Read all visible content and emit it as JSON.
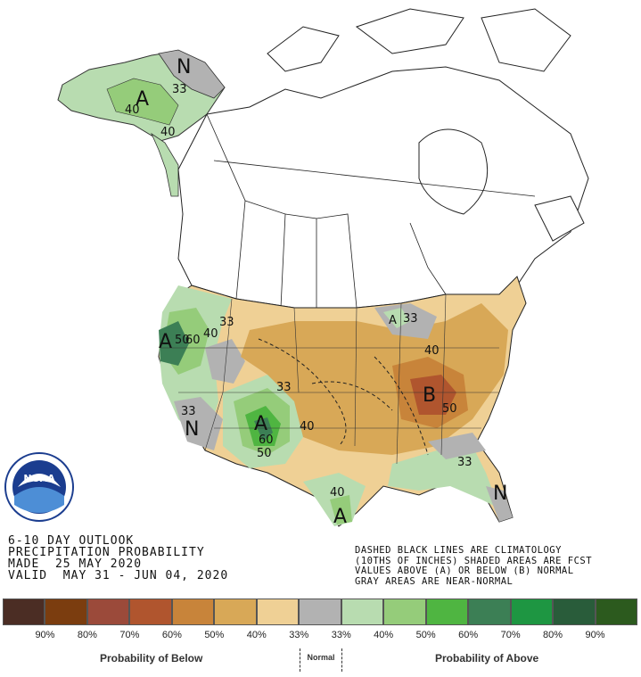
{
  "outlook": {
    "line1": "6-10 DAY OUTLOOK",
    "line2": "PRECIPITATION PROBABILITY",
    "line3": "MADE  25 MAY 2020",
    "line4": "VALID  MAY 31 - JUN 04, 2020"
  },
  "notes": {
    "line1": "DASHED BLACK LINES ARE CLIMATOLOGY",
    "line2": "(10THS OF INCHES) SHADED AREAS ARE FCST",
    "line3": "VALUES ABOVE (A) OR BELOW (B) NORMAL",
    "line4": "GRAY AREAS ARE NEAR-NORMAL"
  },
  "logo": {
    "text": "NOAA"
  },
  "map_labels": {
    "alaska_n": "N",
    "alaska_a": "A",
    "ak_33": "33",
    "ak_40a": "40",
    "ak_40b": "40",
    "nw_a": "A",
    "nw_50": "50",
    "nw_60": "60",
    "nw_40": "40",
    "nw_33": "33",
    "sw_n": "N",
    "sw_33": "33",
    "nm_a": "A",
    "nm_60": "60",
    "nm_50": "50",
    "c_33": "33",
    "c_40": "40",
    "oh_b": "B",
    "oh_50": "50",
    "oh_40": "40",
    "se_33": "33",
    "fl_n": "N",
    "tx_a": "A",
    "tx_40": "40",
    "gl_a": "A",
    "gl_33": "33"
  },
  "legend": {
    "colors": [
      "#4b2d24",
      "#7b3d0f",
      "#9b4a3a",
      "#b0552e",
      "#c8843a",
      "#d8a857",
      "#efd095",
      "#b2b2b2",
      "#b8dcb0",
      "#95cc7a",
      "#4fb541",
      "#3c7f55",
      "#1e9642",
      "#295c3a",
      "#2c5a1e"
    ],
    "percents": [
      "90%",
      "80%",
      "70%",
      "60%",
      "50%",
      "40%",
      "33%",
      "33%",
      "40%",
      "50%",
      "60%",
      "70%",
      "80%",
      "90%"
    ],
    "below_label": "Probability of Below",
    "normal_label": "Normal",
    "above_label": "Probability of Above"
  }
}
